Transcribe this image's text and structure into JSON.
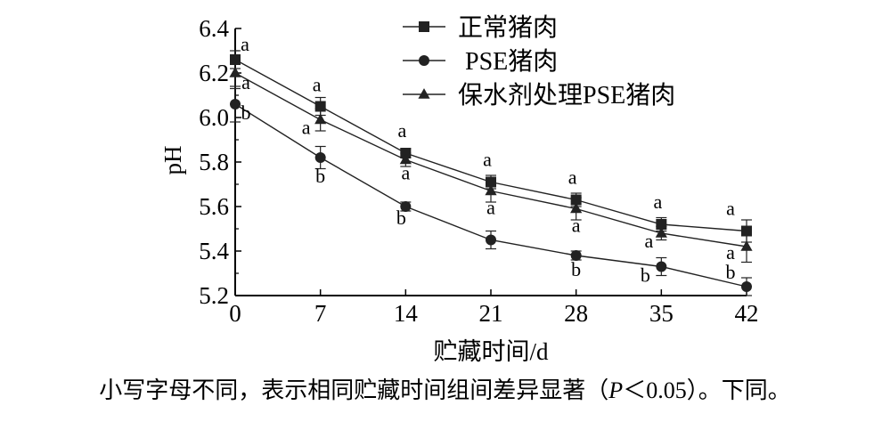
{
  "chart_data": {
    "type": "line",
    "title": "",
    "xlabel": "贮藏时间/d",
    "ylabel": "pH",
    "x": [
      0,
      7,
      14,
      21,
      28,
      35,
      42
    ],
    "x_ticks": [
      "0",
      "7",
      "14",
      "21",
      "28",
      "35",
      "42"
    ],
    "ylim": [
      5.2,
      6.4
    ],
    "y_ticks": [
      "5.2",
      "5.4",
      "5.6",
      "5.8",
      "6.0",
      "6.2",
      "6.4"
    ],
    "legend_position": "top",
    "grid": false,
    "series": [
      {
        "name": "正常猪肉",
        "marker": "square",
        "values": [
          6.26,
          6.05,
          5.84,
          5.71,
          5.63,
          5.52,
          5.49
        ],
        "errors": [
          0.04,
          0.04,
          0.02,
          0.03,
          0.03,
          0.03,
          0.05
        ],
        "letters": [
          "a",
          "a",
          "a",
          "a",
          "a",
          "a",
          "a"
        ]
      },
      {
        "name": "PSE猪肉",
        "marker": "circle",
        "values": [
          6.06,
          5.82,
          5.6,
          5.45,
          5.38,
          5.33,
          5.24
        ],
        "errors": [
          0.08,
          0.05,
          0.02,
          0.04,
          0.02,
          0.04,
          0.04
        ],
        "letters": [
          "b",
          "b",
          "b",
          "b",
          "b",
          "b",
          "b"
        ]
      },
      {
        "name": "保水剂处理PSE猪肉",
        "marker": "triangle",
        "values": [
          6.2,
          5.99,
          5.81,
          5.67,
          5.59,
          5.48,
          5.42
        ],
        "errors": [
          0.07,
          0.05,
          0.03,
          0.05,
          0.05,
          0.03,
          0.07
        ],
        "letters": [
          "a",
          "a",
          "a",
          "a",
          "a",
          "a",
          "a"
        ]
      }
    ]
  },
  "caption": {
    "before_p": "小写字母不同，表示相同贮藏时间组间差异显著（",
    "p_symbol": "P",
    "after_p": "＜0.05）。下同。"
  }
}
